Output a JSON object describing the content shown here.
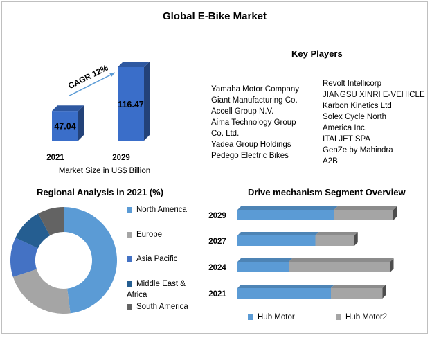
{
  "title": "Global E-Bike Market",
  "market_size": {
    "caption": "Market Size in US$ Billion",
    "cagr_label": "CAGR 12%",
    "bar_color": "#3a6ec9"
  },
  "key_players": {
    "heading": "Key Players",
    "col1": [
      "Yamaha Motor Company",
      "Giant Manufacturing Co.",
      "Accell Group N.V.",
      "Aima Technology Group",
      "Co. Ltd.",
      "Yadea Group Holdings",
      "Pedego Electric Bikes"
    ],
    "col2": [
      "Revolt Intellicorp",
      "JIANGSU XINRI E-VEHICLE",
      "Karbon Kinetics Ltd",
      "Solex Cycle North",
      "America Inc.",
      "ITALJET SPA",
      "GenZe by Mahindra",
      "A2B"
    ]
  },
  "regional": {
    "heading": "Regional Analysis in 2021 (%)"
  },
  "drive": {
    "heading": "Drive mechanism Segment Overview"
  },
  "chart_data": [
    {
      "type": "bar",
      "categories": [
        "2021",
        "2029"
      ],
      "values": [
        47.04,
        116.47
      ],
      "title": "",
      "xlabel": "Market Size in US$ Billion",
      "ylabel": ""
    },
    {
      "type": "pie",
      "title": "Regional Analysis in 2021 (%)",
      "labels": [
        "North America",
        "Europe",
        "Asia Pacific",
        "Middle East & Africa",
        "South America"
      ],
      "values": [
        48,
        22,
        12,
        10,
        8
      ],
      "colors": [
        "#5b9bd5",
        "#a5a5a5",
        "#4472c4",
        "#255e91",
        "#636363"
      ],
      "legend_position": "right"
    },
    {
      "type": "bar",
      "orientation": "horizontal",
      "stacked": true,
      "title": "Drive mechanism Segment Overview",
      "categories": [
        "2029",
        "2027",
        "2024",
        "2021"
      ],
      "series": [
        {
          "name": "Hub Motor",
          "values": [
            62,
            50,
            33,
            60
          ],
          "color": "#5b9bd5"
        },
        {
          "name": "Hub Motor2",
          "values": [
            38,
            25,
            65,
            33
          ],
          "color": "#a5a5a5"
        }
      ],
      "legend_position": "bottom"
    }
  ]
}
